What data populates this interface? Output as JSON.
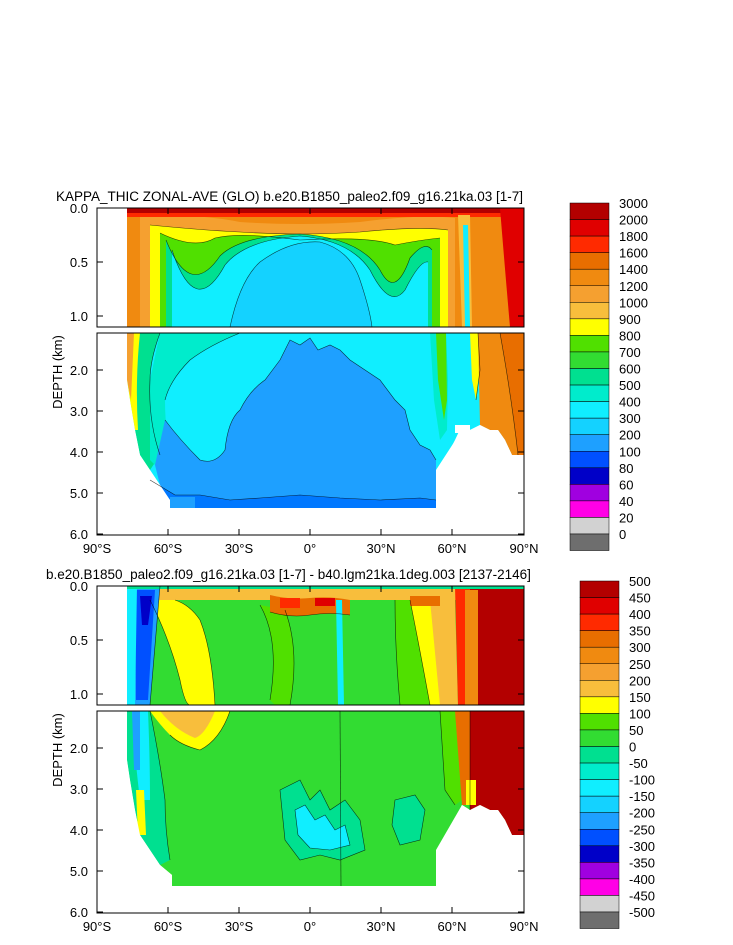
{
  "chart_data": [
    {
      "type": "heatmap",
      "title": "KAPPA_THIC ZONAL-AVE (GLO) b.e20.B1850_paleo2.f09_g16.21ka.03 [1-7]",
      "ylabel": "DEPTH (km)",
      "xlabel": "",
      "x_ticks": [
        "90°S",
        "60°S",
        "30°S",
        "0°",
        "30°N",
        "60°N",
        "90°N"
      ],
      "y_ticks_upper": [
        "0.0",
        "0.5",
        "1.0"
      ],
      "y_ticks_lower": [
        "2.0",
        "3.0",
        "4.0",
        "5.0",
        "6.0"
      ],
      "xlim": [
        -90,
        90
      ],
      "ylim_km": [
        0,
        6
      ],
      "levels": [
        "3000",
        "2000",
        "1800",
        "1600",
        "1400",
        "1200",
        "1000",
        "900",
        "800",
        "700",
        "600",
        "500",
        "400",
        "300",
        "200",
        "100",
        "80",
        "60",
        "40",
        "20",
        "0"
      ],
      "colors": [
        "#b30000",
        "#e00000",
        "#ff2a00",
        "#e86e00",
        "#f08a10",
        "#f5a030",
        "#f8be3c",
        "#ffff00",
        "#50e000",
        "#32dc32",
        "#00e090",
        "#00eccc",
        "#10eeff",
        "#14d2ff",
        "#1ea0ff",
        "#0050ff",
        "#0000c8",
        "#a000e0",
        "#ff00e6",
        "#d2d2d2",
        "#6e6e6e"
      ],
      "region_values": [
        {
          "region": "interior 200-300 band",
          "value": 250
        },
        {
          "region": "mid-depth high latitudes",
          "value": 450
        },
        {
          "region": "surface layer",
          "value": 1500
        },
        {
          "region": "arctic shelf",
          "value": 2500
        }
      ]
    },
    {
      "type": "heatmap",
      "title": "b.e20.B1850_paleo2.f09_g16.21ka.03 [1-7] - b40.lgm21ka.1deg.003 [2137-2146]",
      "ylabel": "DEPTH (km)",
      "xlabel": "",
      "x_ticks": [
        "90°S",
        "60°S",
        "30°S",
        "0°",
        "30°N",
        "60°N",
        "90°N"
      ],
      "y_ticks_upper": [
        "0.0",
        "0.5",
        "1.0"
      ],
      "y_ticks_lower": [
        "2.0",
        "3.0",
        "4.0",
        "5.0",
        "6.0"
      ],
      "xlim": [
        -90,
        90
      ],
      "ylim_km": [
        0,
        6
      ],
      "levels": [
        "500",
        "450",
        "400",
        "350",
        "300",
        "250",
        "200",
        "150",
        "100",
        "50",
        "0",
        "-50",
        "-100",
        "-150",
        "-200",
        "-250",
        "-300",
        "-350",
        "-400",
        "-450",
        "-500"
      ],
      "colors": [
        "#b30000",
        "#e00000",
        "#ff2a00",
        "#e86e00",
        "#f08a10",
        "#f5a030",
        "#f8be3c",
        "#ffff00",
        "#50e000",
        "#32dc32",
        "#00e090",
        "#00eccc",
        "#10eeff",
        "#14d2ff",
        "#1ea0ff",
        "#0050ff",
        "#0000c8",
        "#a000e0",
        "#ff00e6",
        "#d2d2d2",
        "#6e6e6e"
      ],
      "region_values": [
        {
          "region": "interior",
          "value": 25
        },
        {
          "region": "southern ocean",
          "value": -150
        },
        {
          "region": "arctic",
          "value": 500
        }
      ]
    }
  ]
}
